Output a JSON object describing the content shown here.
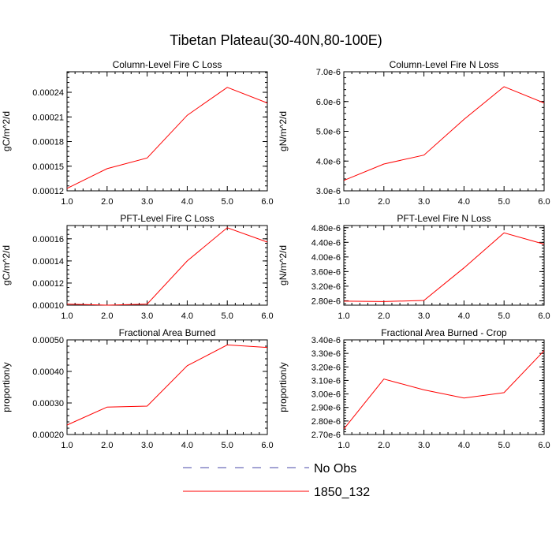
{
  "figure_title": "Tibetan Plateau(30-40N,80-100E)",
  "legend": {
    "items": [
      {
        "label": "No Obs",
        "style": "dashed",
        "color": "#4a4aa8"
      },
      {
        "label": "1850_132",
        "style": "solid",
        "color": "#ff0000"
      }
    ]
  },
  "series_color": "#ff0000",
  "chart_data": [
    {
      "type": "line",
      "title": "Column-Level Fire C Loss",
      "ylabel": "gC/m^2/d",
      "x": [
        1,
        2,
        3,
        4,
        5,
        6
      ],
      "xticks": [
        "1.0",
        "2.0",
        "3.0",
        "4.0",
        "5.0",
        "6.0"
      ],
      "xlim": [
        1,
        6
      ],
      "ylim": [
        0.00012,
        0.000265
      ],
      "yticks": [
        0.00012,
        0.00015,
        0.00018,
        0.00021,
        0.00024
      ],
      "yticklabels": [
        "0.00012",
        "0.00015",
        "0.00018",
        "0.00021",
        "0.00024"
      ],
      "series": [
        {
          "name": "1850_132",
          "values": [
            0.000123,
            0.000147,
            0.00016,
            0.000212,
            0.000246,
            0.000227
          ]
        }
      ]
    },
    {
      "type": "line",
      "title": "Column-Level Fire N Loss",
      "ylabel": "gN/m^2/d",
      "x": [
        1,
        2,
        3,
        4,
        5,
        6
      ],
      "xticks": [
        "1.0",
        "2.0",
        "3.0",
        "4.0",
        "5.0",
        "6.0"
      ],
      "xlim": [
        1,
        6
      ],
      "ylim": [
        3e-06,
        7e-06
      ],
      "yticks": [
        3e-06,
        4e-06,
        5e-06,
        6e-06,
        7e-06
      ],
      "yticklabels": [
        "3.0e-6",
        "4.0e-6",
        "5.0e-6",
        "6.0e-6",
        "7.0e-6"
      ],
      "series": [
        {
          "name": "1850_132",
          "values": [
            3.35e-06,
            3.9e-06,
            4.2e-06,
            5.4e-06,
            6.5e-06,
            5.95e-06
          ]
        }
      ]
    },
    {
      "type": "line",
      "title": "PFT-Level Fire C Loss",
      "ylabel": "gC/m^2/d",
      "x": [
        1,
        2,
        3,
        4,
        5,
        6
      ],
      "xticks": [
        "1.0",
        "2.0",
        "3.0",
        "4.0",
        "5.0",
        "6.0"
      ],
      "xlim": [
        1,
        6
      ],
      "ylim": [
        0.0001,
        0.000172
      ],
      "yticks": [
        0.0001,
        0.00012,
        0.00014,
        0.00016
      ],
      "yticklabels": [
        "0.00010",
        "0.00012",
        "0.00014",
        "0.00016"
      ],
      "series": [
        {
          "name": "1850_132",
          "values": [
            0.000101,
            0.0001,
            0.000101,
            0.00014,
            0.00017,
            0.000157
          ]
        }
      ]
    },
    {
      "type": "line",
      "title": "PFT-Level Fire N Loss",
      "ylabel": "gN/m^2/d",
      "x": [
        1,
        2,
        3,
        4,
        5,
        6
      ],
      "xticks": [
        "1.0",
        "2.0",
        "3.0",
        "4.0",
        "5.0",
        "6.0"
      ],
      "xlim": [
        1,
        6
      ],
      "ylim": [
        2.68e-06,
        4.86e-06
      ],
      "yticks": [
        2.8e-06,
        3.2e-06,
        3.6e-06,
        4e-06,
        4.4e-06,
        4.8e-06
      ],
      "yticklabels": [
        "2.80e-6",
        "3.20e-6",
        "3.60e-6",
        "4.00e-6",
        "4.40e-6",
        "4.80e-6"
      ],
      "series": [
        {
          "name": "1850_132",
          "values": [
            2.79e-06,
            2.78e-06,
            2.81e-06,
            3.7e-06,
            4.66e-06,
            4.35e-06
          ]
        }
      ]
    },
    {
      "type": "line",
      "title": "Fractional Area Burned",
      "ylabel": "proportion/y",
      "x": [
        1,
        2,
        3,
        4,
        5,
        6
      ],
      "xticks": [
        "1.0",
        "2.0",
        "3.0",
        "4.0",
        "5.0",
        "6.0"
      ],
      "xlim": [
        1,
        6
      ],
      "ylim": [
        0.0002,
        0.0005
      ],
      "yticks": [
        0.0002,
        0.0003,
        0.0004,
        0.0005
      ],
      "yticklabels": [
        "0.00020",
        "0.00030",
        "0.00040",
        "0.00050"
      ],
      "series": [
        {
          "name": "1850_132",
          "values": [
            0.00023,
            0.000287,
            0.00029,
            0.000418,
            0.000484,
            0.000476
          ]
        }
      ]
    },
    {
      "type": "line",
      "title": "Fractional Area Burned - Crop",
      "ylabel": "proportion/y",
      "x": [
        1,
        2,
        3,
        4,
        5,
        6
      ],
      "xticks": [
        "1.0",
        "2.0",
        "3.0",
        "4.0",
        "5.0",
        "6.0"
      ],
      "xlim": [
        1,
        6
      ],
      "ylim": [
        2.7e-06,
        3.4e-06
      ],
      "yticks": [
        2.7e-06,
        2.8e-06,
        2.9e-06,
        3e-06,
        3.1e-06,
        3.2e-06,
        3.3e-06,
        3.4e-06
      ],
      "yticklabels": [
        "2.70e-6",
        "2.80e-6",
        "2.90e-6",
        "3.00e-6",
        "3.10e-6",
        "3.20e-6",
        "3.30e-6",
        "3.40e-6"
      ],
      "series": [
        {
          "name": "1850_132",
          "values": [
            2.74e-06,
            3.11e-06,
            3.03e-06,
            2.97e-06,
            3.01e-06,
            3.32e-06
          ]
        }
      ]
    }
  ]
}
